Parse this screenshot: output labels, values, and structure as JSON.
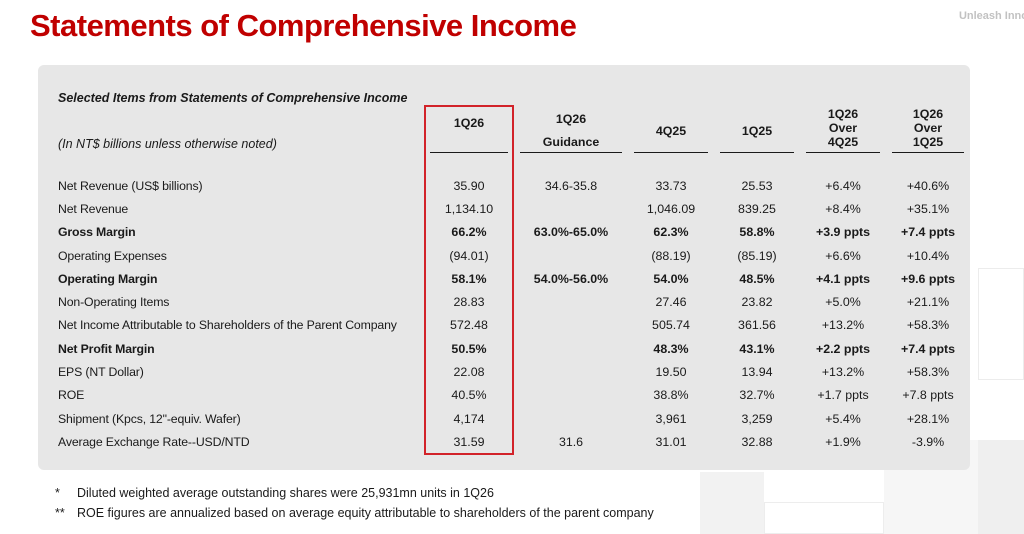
{
  "page": {
    "title": "Statements of Comprehensive Income",
    "watermark": "Unleash Inno"
  },
  "colors": {
    "title_red": "#c00000",
    "highlight_box_red": "#d2232a",
    "panel_gray": "#e7e7e7"
  },
  "table": {
    "caption": "Selected Items from Statements of Comprehensive Income",
    "unit_note": "(In NT$ billions unless otherwise noted)",
    "columns": [
      {
        "id": "q126",
        "lines": [
          "1Q26"
        ],
        "highlight": true
      },
      {
        "id": "guidance",
        "lines": [
          "1Q26",
          "Guidance"
        ]
      },
      {
        "id": "q425",
        "lines": [
          "4Q25"
        ]
      },
      {
        "id": "q125",
        "lines": [
          "1Q25"
        ]
      },
      {
        "id": "over_q425",
        "lines": [
          "1Q26",
          "Over",
          "4Q25"
        ]
      },
      {
        "id": "over_q125",
        "lines": [
          "1Q26",
          "Over",
          "1Q25"
        ]
      }
    ],
    "rows": [
      {
        "label": "Net Revenue (US$ billions)",
        "bold": false,
        "values": [
          "35.90",
          "34.6-35.8",
          "33.73",
          "25.53",
          "+6.4%",
          "+40.6%"
        ]
      },
      {
        "label": "Net Revenue",
        "bold": false,
        "values": [
          "1,134.10",
          "",
          "1,046.09",
          "839.25",
          "+8.4%",
          "+35.1%"
        ]
      },
      {
        "label": "Gross Margin",
        "bold": true,
        "values": [
          "66.2%",
          "63.0%-65.0%",
          "62.3%",
          "58.8%",
          "+3.9 ppts",
          "+7.4 ppts"
        ]
      },
      {
        "label": "Operating Expenses",
        "bold": false,
        "values": [
          "(94.01)",
          "",
          "(88.19)",
          "(85.19)",
          "+6.6%",
          "+10.4%"
        ]
      },
      {
        "label": "Operating Margin",
        "bold": true,
        "values": [
          "58.1%",
          "54.0%-56.0%",
          "54.0%",
          "48.5%",
          "+4.1 ppts",
          "+9.6 ppts"
        ]
      },
      {
        "label": "Non-Operating Items",
        "bold": false,
        "values": [
          "28.83",
          "",
          "27.46",
          "23.82",
          "+5.0%",
          "+21.1%"
        ]
      },
      {
        "label": "Net Income Attributable to Shareholders of the Parent Company",
        "bold": false,
        "values": [
          "572.48",
          "",
          "505.74",
          "361.56",
          "+13.2%",
          "+58.3%"
        ]
      },
      {
        "label": "Net Profit Margin",
        "bold": true,
        "values": [
          "50.5%",
          "",
          "48.3%",
          "43.1%",
          "+2.2 ppts",
          "+7.4 ppts"
        ]
      },
      {
        "label": "EPS (NT Dollar)",
        "bold": false,
        "values": [
          "22.08",
          "",
          "19.50",
          "13.94",
          "+13.2%",
          "+58.3%"
        ]
      },
      {
        "label": "ROE",
        "bold": false,
        "values": [
          "40.5%",
          "",
          "38.8%",
          "32.7%",
          "+1.7 ppts",
          "+7.8 ppts"
        ]
      },
      {
        "label": "Shipment (Kpcs, 12\"-equiv. Wafer)",
        "bold": false,
        "values": [
          "4,174",
          "",
          "3,961",
          "3,259",
          "+5.4%",
          "+28.1%"
        ]
      },
      {
        "label": "Average Exchange Rate--USD/NTD",
        "bold": false,
        "values": [
          "31.59",
          "31.6",
          "31.01",
          "32.88",
          "+1.9%",
          "-3.9%"
        ]
      }
    ],
    "footnotes": [
      {
        "marker": "*",
        "text": "Diluted weighted average outstanding shares were 25,931mn units in 1Q26"
      },
      {
        "marker": "**",
        "text": "ROE figures are annualized based on average equity attributable to shareholders of the parent company"
      }
    ]
  }
}
